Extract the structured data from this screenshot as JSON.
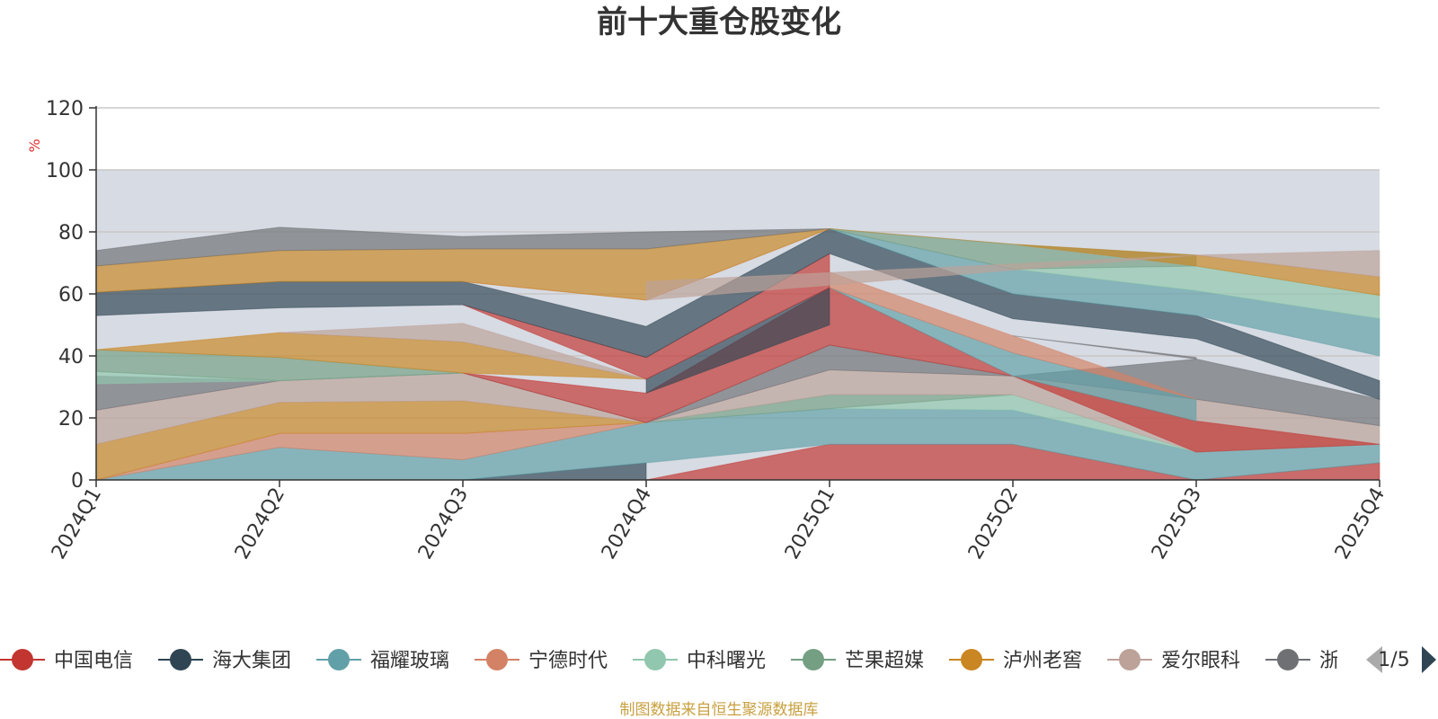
{
  "chart_data": {
    "type": "area",
    "title": "前十大重仓股变化",
    "ylabel": "%",
    "xlabel": "",
    "ylim": [
      0,
      120
    ],
    "yticks": [
      0,
      20,
      40,
      60,
      80,
      100,
      120
    ],
    "categories": [
      "2024Q1",
      "2024Q2",
      "2024Q3",
      "2024Q4",
      "2025Q1",
      "2025Q2",
      "2025Q3",
      "2025Q4"
    ],
    "grid": true,
    "shaded_band": [
      0,
      100
    ],
    "legend_position": "bottom",
    "series": [
      {
        "name": "中国电信",
        "color": "#c23531",
        "values": [
          null,
          null,
          null,
          0,
          11.5,
          11.5,
          0,
          5.5
        ]
      },
      {
        "name": "海大集团",
        "color": "#2f4554",
        "values": [
          null,
          null,
          0,
          5.5,
          null,
          null,
          null,
          null
        ]
      },
      {
        "name": "福耀玻璃",
        "color": "#61a0a8",
        "values": [
          0,
          10.5,
          6.5,
          13,
          11.5,
          11,
          9,
          6
        ]
      },
      {
        "name": "宁德时代",
        "color": "#d48265",
        "values": [
          0,
          4.5,
          8.5,
          null,
          null,
          null,
          null,
          null
        ]
      },
      {
        "name": "中科曙光",
        "color": "#91c7ae",
        "values": [
          null,
          null,
          null,
          null,
          null,
          5,
          0,
          null
        ]
      },
      {
        "name": "芒果超媒",
        "color": "#749f83",
        "values": [
          null,
          null,
          null,
          0,
          4.5,
          null,
          null,
          null
        ]
      },
      {
        "name": "泸州老窖",
        "color": "#ca8622",
        "values": [
          11.5,
          10,
          10.5,
          0,
          null,
          null,
          null,
          null
        ]
      },
      {
        "name": "爱尔眼科",
        "color": "#bda29a",
        "values": [
          null,
          7,
          9,
          0,
          8,
          6,
          17,
          6
        ]
      },
      {
        "name": "浙江鼎力",
        "color": "#6e7074",
        "values": [
          11,
          null,
          null,
          0,
          8,
          null,
          13,
          8.5
        ]
      }
    ]
  },
  "legend": {
    "items": [
      {
        "label": "中国电信",
        "color": "#c23531"
      },
      {
        "label": "海大集团",
        "color": "#2f4554"
      },
      {
        "label": "福耀玻璃",
        "color": "#61a0a8"
      },
      {
        "label": "宁德时代",
        "color": "#d48265"
      },
      {
        "label": "中科曙光",
        "color": "#91c7ae"
      },
      {
        "label": "芒果超媒",
        "color": "#749f83"
      },
      {
        "label": "泸州老窖",
        "color": "#ca8622"
      },
      {
        "label": "爱尔眼科",
        "color": "#bda29a"
      },
      {
        "label": "浙江鼎力",
        "color": "#6e7074"
      }
    ],
    "page_indicator": "1/5"
  },
  "source_note": "制图数据来自恒生聚源数据库",
  "bands": [
    {
      "color": "#c23531",
      "pts": [
        [
          3,
          0
        ],
        [
          4,
          11.5
        ],
        [
          5,
          11.5
        ],
        [
          6,
          0
        ],
        [
          7,
          5.5
        ]
      ],
      "base": [
        [
          3,
          0
        ],
        [
          4,
          0
        ],
        [
          5,
          0
        ],
        [
          6,
          0
        ],
        [
          7,
          0
        ]
      ]
    },
    {
      "color": "#2f4554",
      "pts": [
        [
          2,
          0
        ],
        [
          3,
          5.5
        ]
      ],
      "base": [
        [
          2,
          0
        ],
        [
          3,
          0
        ]
      ]
    },
    {
      "color": "#61a0a8",
      "pts": [
        [
          0,
          0
        ],
        [
          1,
          10.5
        ],
        [
          2,
          6.5
        ],
        [
          3,
          18.5
        ],
        [
          4,
          23
        ],
        [
          5,
          22.5
        ],
        [
          6,
          9
        ],
        [
          7,
          11.5
        ]
      ],
      "base": [
        [
          0,
          0
        ],
        [
          1,
          0
        ],
        [
          2,
          0
        ],
        [
          3,
          5.5
        ],
        [
          4,
          11.5
        ],
        [
          5,
          11.5
        ],
        [
          6,
          0
        ],
        [
          7,
          5.5
        ]
      ]
    },
    {
      "color": "#d48265",
      "pts": [
        [
          0,
          0
        ],
        [
          1,
          15
        ],
        [
          2,
          15
        ],
        [
          3,
          18.5
        ]
      ],
      "base": [
        [
          0,
          0
        ],
        [
          1,
          10.5
        ],
        [
          2,
          6.5
        ],
        [
          3,
          18.5
        ]
      ]
    },
    {
      "color": "#91c7ae",
      "pts": [
        [
          4,
          23
        ],
        [
          5,
          27.5
        ],
        [
          6,
          9
        ]
      ],
      "base": [
        [
          4,
          23
        ],
        [
          5,
          22.5
        ],
        [
          6,
          9
        ]
      ]
    },
    {
      "color": "#749f83",
      "pts": [
        [
          3,
          18.5
        ],
        [
          4,
          27.5
        ],
        [
          5,
          27.5
        ]
      ],
      "base": [
        [
          3,
          18.5
        ],
        [
          4,
          23
        ],
        [
          5,
          27.5
        ]
      ]
    },
    {
      "color": "#ca8622",
      "pts": [
        [
          0,
          11.5
        ],
        [
          1,
          25
        ],
        [
          2,
          25.5
        ],
        [
          3,
          18.5
        ]
      ],
      "base": [
        [
          0,
          0
        ],
        [
          1,
          15
        ],
        [
          2,
          15
        ],
        [
          3,
          18.5
        ]
      ]
    },
    {
      "color": "#bda29a",
      "pts": [
        [
          0,
          22.5
        ],
        [
          1,
          32
        ],
        [
          2,
          34.5
        ],
        [
          3,
          18.5
        ],
        [
          4,
          35.5
        ],
        [
          5,
          33.5
        ],
        [
          6,
          26
        ],
        [
          7,
          17.5
        ]
      ],
      "base": [
        [
          0,
          11.5
        ],
        [
          1,
          25
        ],
        [
          2,
          25.5
        ],
        [
          3,
          18.5
        ],
        [
          4,
          27.5
        ],
        [
          5,
          27.5
        ],
        [
          6,
          9
        ],
        [
          7,
          11.5
        ]
      ]
    },
    {
      "color": "#6e7074",
      "pts": [
        [
          0,
          33.5
        ],
        [
          1,
          32
        ],
        [
          2,
          34.5
        ],
        [
          3,
          18.5
        ],
        [
          4,
          43.5
        ],
        [
          5,
          33.5
        ],
        [
          6,
          39
        ],
        [
          7,
          26
        ]
      ],
      "base": [
        [
          0,
          22.5
        ],
        [
          1,
          32
        ],
        [
          2,
          34.5
        ],
        [
          3,
          18.5
        ],
        [
          4,
          35.5
        ],
        [
          5,
          33.5
        ],
        [
          6,
          26
        ],
        [
          7,
          17.5
        ]
      ]
    },
    {
      "color": "#91c7ae",
      "pts": [
        [
          0,
          35
        ],
        [
          1,
          32
        ],
        [
          2,
          34.5
        ]
      ],
      "base": [
        [
          0,
          31
        ],
        [
          1,
          32
        ],
        [
          2,
          34.5
        ]
      ]
    },
    {
      "color": "#749f83",
      "pts": [
        [
          0,
          42
        ],
        [
          1,
          39.5
        ],
        [
          2,
          34.5
        ]
      ],
      "base": [
        [
          0,
          35
        ],
        [
          1,
          32
        ],
        [
          2,
          34.5
        ]
      ]
    },
    {
      "color": "#c23531",
      "pts": [
        [
          2,
          34.5
        ],
        [
          3,
          28
        ],
        [
          4,
          62
        ],
        [
          5,
          33.5
        ],
        [
          6,
          19
        ],
        [
          7,
          11.5
        ]
      ],
      "base": [
        [
          2,
          34.5
        ],
        [
          3,
          18.5
        ],
        [
          4,
          43.5
        ],
        [
          5,
          33.5
        ],
        [
          6,
          9
        ],
        [
          7,
          11.5
        ]
      ]
    },
    {
      "color": "#2f4554",
      "pts": [
        [
          3,
          32.5
        ],
        [
          4,
          62
        ]
      ],
      "base": [
        [
          3,
          28
        ],
        [
          4,
          50
        ]
      ]
    },
    {
      "color": "#ca8622",
      "pts": [
        [
          0,
          42
        ],
        [
          1,
          47.5
        ],
        [
          2,
          44.5
        ],
        [
          3,
          32.5
        ]
      ],
      "base": [
        [
          0,
          42
        ],
        [
          1,
          39.5
        ],
        [
          2,
          34.5
        ],
        [
          3,
          32.5
        ]
      ]
    },
    {
      "color": "#bda29a",
      "pts": [
        [
          1,
          47.5
        ],
        [
          2,
          50.5
        ],
        [
          3,
          32.5
        ]
      ],
      "base": [
        [
          1,
          47.5
        ],
        [
          2,
          44.5
        ],
        [
          3,
          32.5
        ]
      ]
    },
    {
      "color": "#61a0a8",
      "pts": [
        [
          4,
          62
        ],
        [
          5,
          41
        ],
        [
          6,
          26
        ]
      ],
      "base": [
        [
          4,
          62
        ],
        [
          5,
          33.5
        ],
        [
          6,
          19
        ]
      ]
    },
    {
      "color": "#d48265",
      "pts": [
        [
          4,
          67
        ],
        [
          5,
          46.5
        ],
        [
          6,
          26
        ]
      ],
      "base": [
        [
          4,
          62
        ],
        [
          5,
          41
        ],
        [
          6,
          26
        ]
      ]
    },
    {
      "color": "#6e7074",
      "pts": [
        [
          5,
          46.5
        ],
        [
          6,
          39.5
        ]
      ],
      "base": [
        [
          5,
          46.5
        ],
        [
          6,
          39
        ]
      ]
    },
    {
      "color": "#c23531",
      "pts": [
        [
          2,
          56.5
        ],
        [
          3,
          39.5
        ],
        [
          4,
          73
        ]
      ],
      "base": [
        [
          2,
          56.5
        ],
        [
          3,
          32.5
        ],
        [
          4,
          62
        ]
      ]
    },
    {
      "color": "#2f4554",
      "pts": [
        [
          0,
          60.5
        ],
        [
          1,
          64
        ],
        [
          2,
          64
        ],
        [
          3,
          49.5
        ],
        [
          4,
          81
        ],
        [
          5,
          60
        ],
        [
          6,
          53
        ],
        [
          7,
          32
        ]
      ],
      "base": [
        [
          0,
          53
        ],
        [
          1,
          55.5
        ],
        [
          2,
          56.5
        ],
        [
          3,
          39.5
        ],
        [
          4,
          73
        ],
        [
          5,
          52
        ],
        [
          6,
          45.5
        ],
        [
          7,
          26
        ]
      ]
    },
    {
      "color": "#d48265",
      "pts": [
        [
          2,
          64
        ],
        [
          3,
          58
        ],
        [
          4,
          81
        ]
      ],
      "base": [
        [
          2,
          64
        ],
        [
          3,
          58
        ],
        [
          4,
          81
        ]
      ]
    },
    {
      "color": "#61a0a8",
      "pts": [
        [
          4,
          81
        ],
        [
          5,
          68
        ],
        [
          6,
          61
        ],
        [
          7,
          52
        ]
      ],
      "base": [
        [
          4,
          81
        ],
        [
          5,
          60
        ],
        [
          6,
          53
        ],
        [
          7,
          40
        ]
      ]
    },
    {
      "color": "#91c7ae",
      "pts": [
        [
          5,
          68
        ],
        [
          6,
          69
        ],
        [
          7,
          59.5
        ]
      ],
      "base": [
        [
          5,
          68
        ],
        [
          6,
          61
        ],
        [
          7,
          52
        ]
      ]
    },
    {
      "color": "#749f83",
      "pts": [
        [
          4,
          81
        ],
        [
          5,
          76
        ],
        [
          6,
          72.5
        ]
      ],
      "base": [
        [
          4,
          81
        ],
        [
          5,
          68
        ],
        [
          6,
          69
        ]
      ]
    },
    {
      "color": "#ca8622",
      "pts": [
        [
          0,
          69
        ],
        [
          1,
          74
        ],
        [
          2,
          74.5
        ],
        [
          3,
          74.5
        ],
        [
          4,
          81
        ],
        [
          5,
          76
        ],
        [
          6,
          72.5
        ],
        [
          7,
          65.5
        ]
      ],
      "base": [
        [
          0,
          60.5
        ],
        [
          1,
          64
        ],
        [
          2,
          64
        ],
        [
          3,
          58
        ],
        [
          4,
          81
        ],
        [
          5,
          76
        ],
        [
          6,
          69
        ],
        [
          7,
          59.5
        ]
      ]
    },
    {
      "color": "#bda29a",
      "pts": [
        [
          3,
          64
        ],
        [
          6,
          72.5
        ],
        [
          7,
          74
        ]
      ],
      "base": [
        [
          3,
          58
        ],
        [
          6,
          72.5
        ],
        [
          7,
          65.5
        ]
      ]
    },
    {
      "color": "#6e7074",
      "pts": [
        [
          0,
          74
        ],
        [
          1,
          81.5
        ],
        [
          2,
          78.5
        ],
        [
          3,
          80
        ],
        [
          4,
          81
        ]
      ],
      "base": [
        [
          0,
          69
        ],
        [
          1,
          74
        ],
        [
          2,
          74.5
        ],
        [
          3,
          74.5
        ],
        [
          4,
          81
        ]
      ]
    }
  ]
}
